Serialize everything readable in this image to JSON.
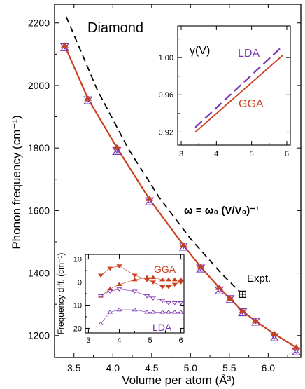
{
  "chart_data": [
    {
      "type": "line",
      "title": "Diamond",
      "xlabel": "Volume per atom (Å³)",
      "ylabel": "Phonon frequency (cm⁻¹)",
      "xlim": [
        3.25,
        6.42
      ],
      "ylim": [
        1130,
        2260
      ],
      "xticks": [
        "3.5",
        "4.0",
        "4.5",
        "5.0",
        "5.5",
        "6.0"
      ],
      "yticks": [
        "1200",
        "1400",
        "1600",
        "1800",
        "2000",
        "2200"
      ],
      "grid": false,
      "annotations": {
        "scaling_label": "ω = ω₀ (V/V₀)⁻¹",
        "expt_label": "Expt."
      },
      "series": [
        {
          "name": "GGA",
          "marker": "filled-triangle",
          "color": "#c8401e",
          "x": [
            3.38,
            3.68,
            4.05,
            4.47,
            4.91,
            5.13,
            5.37,
            5.51,
            5.67,
            5.84,
            6.08,
            6.36
          ],
          "y": [
            2128,
            1958,
            1802,
            1637,
            1489,
            1420,
            1353,
            1318,
            1278,
            1246,
            1205,
            1162
          ]
        },
        {
          "name": "LDA",
          "marker": "open-triangle",
          "color": "#7b35b0",
          "x": [
            3.38,
            3.68,
            4.05,
            4.47,
            4.91,
            5.13,
            5.37,
            5.51,
            5.67,
            5.84,
            6.08,
            6.36
          ],
          "y": [
            2118,
            1948,
            1786,
            1625,
            1480,
            1410,
            1340,
            1312,
            1270,
            1240,
            1190,
            1145
          ]
        },
        {
          "name": "ω = ω₀ (V/V₀)⁻¹",
          "style": "dashed",
          "color": "#000000",
          "x": [
            3.4,
            3.8,
            4.2,
            4.6,
            5.0,
            5.4,
            5.67
          ],
          "y": [
            2220,
            1986,
            1797,
            1641,
            1510,
            1398,
            1331
          ]
        },
        {
          "name": "Expt.",
          "marker": "boxed-plus",
          "color": "#000000",
          "x": [
            5.67
          ],
          "y": [
            1332
          ]
        }
      ]
    },
    {
      "type": "line",
      "title": "γ(V)",
      "xlim": [
        2.9,
        6.1
      ],
      "ylim": [
        0.906,
        1.034
      ],
      "xticks": [
        "3",
        "4",
        "5",
        "6"
      ],
      "yticks": [
        "0.92",
        "0.96",
        "1.00"
      ],
      "series": [
        {
          "name": "LDA",
          "style": "dashed",
          "color": "#7b35b0",
          "x": [
            3.4,
            5.9
          ],
          "y": [
            0.925,
            1.013
          ]
        },
        {
          "name": "GGA",
          "style": "solid",
          "color": "#c8401e",
          "x": [
            3.4,
            5.9
          ],
          "y": [
            0.92,
            1.003
          ]
        }
      ]
    },
    {
      "type": "scatter",
      "ylabel": "Frequency diff. (cm⁻¹)",
      "xlim": [
        2.9,
        6.1
      ],
      "ylim": [
        -22,
        12
      ],
      "xticks": [
        "3",
        "4",
        "5",
        "6"
      ],
      "yticks": [
        "-20",
        "-10",
        "0",
        "10"
      ],
      "labels": {
        "gga": "GGA",
        "lda": "LDA"
      },
      "series": [
        {
          "name": "GGA-1",
          "marker": "filled-triangle-down",
          "color": "#c8401e",
          "x": [
            3.4,
            3.7,
            4.0,
            4.5,
            4.9,
            5.1,
            5.4,
            5.6,
            5.8,
            6.0
          ],
          "y": [
            3,
            6,
            7,
            3,
            1,
            0,
            -2,
            -2,
            -1,
            0
          ]
        },
        {
          "name": "GGA-2",
          "marker": "filled-triangle",
          "color": "#c8401e",
          "x": [
            3.4,
            3.7,
            4.0,
            4.5,
            4.9,
            5.1,
            5.4,
            5.6,
            5.8,
            6.0
          ],
          "y": [
            -6,
            -3,
            -1,
            1,
            2,
            2,
            1,
            1,
            1,
            1
          ]
        },
        {
          "name": "LDA-1",
          "marker": "open-triangle-down",
          "color": "#7b35b0",
          "x": [
            3.4,
            3.7,
            4.0,
            4.5,
            4.9,
            5.1,
            5.4,
            5.6,
            5.8,
            6.0
          ],
          "y": [
            -6,
            -4,
            -3,
            -4,
            -6,
            -7,
            -8,
            -9,
            -9,
            -9
          ]
        },
        {
          "name": "LDA-2",
          "marker": "open-triangle",
          "color": "#7b35b0",
          "x": [
            3.4,
            3.7,
            4.0,
            4.5,
            4.9,
            5.1,
            5.4,
            5.6,
            5.8,
            6.0
          ],
          "y": [
            -18,
            -13,
            -12,
            -12,
            -13,
            -13,
            -13,
            -13,
            -13,
            -13
          ]
        }
      ]
    }
  ]
}
